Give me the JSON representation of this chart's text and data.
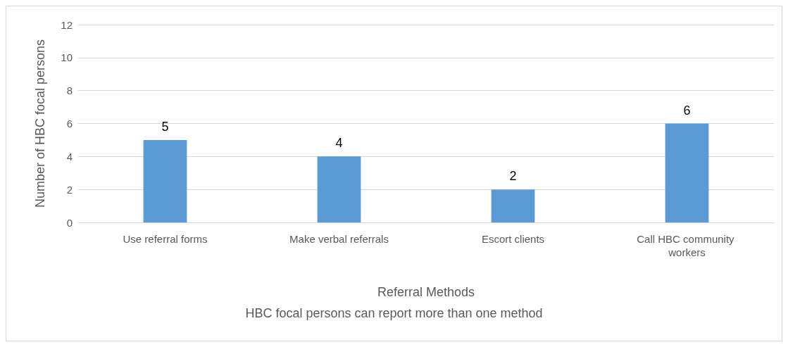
{
  "chart_data": {
    "type": "bar",
    "xlabel": "Referral Methods",
    "ylabel": "Number of HBC focal persons",
    "annotations": [
      "HBC focal persons can report more than one method"
    ],
    "categories": [
      "Use referral forms",
      "Make verbal referrals",
      "Escort clients",
      "Call HBC community workers"
    ],
    "values": [
      5,
      4,
      2,
      6
    ],
    "color": "#5b9bd5",
    "ylim": [
      0,
      12
    ],
    "yticks": [
      0,
      2,
      4,
      6,
      8,
      10,
      12
    ],
    "grid": "y",
    "data_labels": true
  }
}
